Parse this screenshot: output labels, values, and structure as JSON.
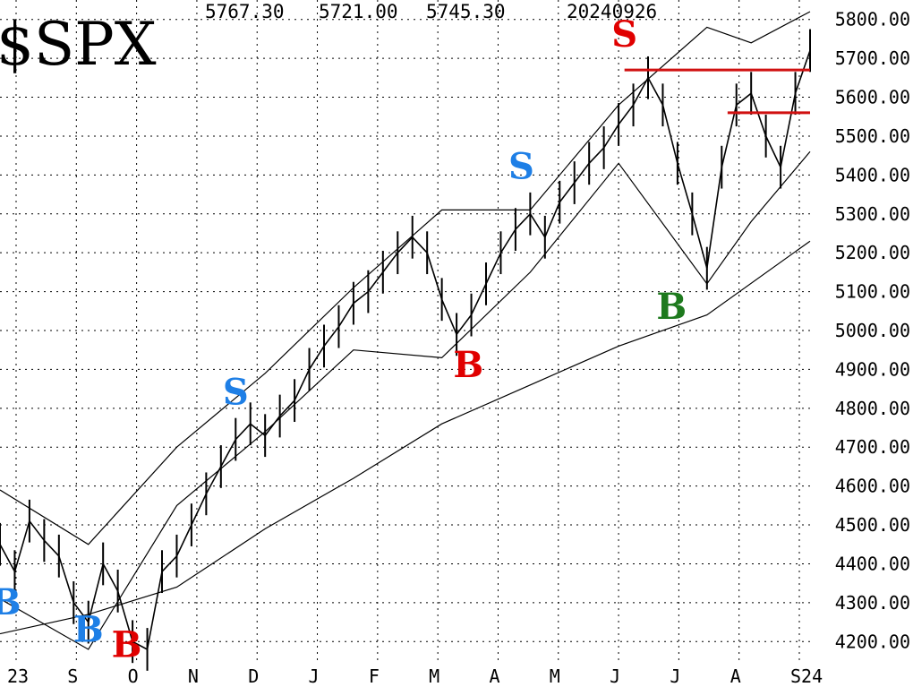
{
  "header": {
    "symbol": "$SPX",
    "high": "5767.30",
    "low": "5721.00",
    "close": "5745.30",
    "date": "20240926"
  },
  "colors": {
    "price": "#000000",
    "grid": "#000000",
    "signal_red": "#e00000",
    "signal_blue": "#1e7fe6",
    "signal_green": "#1e7a1e",
    "resistance_line": "#d01010"
  },
  "chart_data": {
    "type": "line",
    "y_axis": {
      "range": [
        4150,
        5850
      ],
      "ticks": [
        "5800.00",
        "5700.00",
        "5600.00",
        "5500.00",
        "5400.00",
        "5300.00",
        "5200.00",
        "5100.00",
        "5000.00",
        "4900.00",
        "4800.00",
        "4700.00",
        "4600.00",
        "4500.00",
        "4400.00",
        "4300.00",
        "4200.00"
      ],
      "position": "right"
    },
    "x_axis": {
      "labels": [
        "23",
        "S",
        "O",
        "N",
        "D",
        "J",
        "F",
        "M",
        "A",
        "M",
        "J",
        "J",
        "A",
        "S24"
      ]
    },
    "grid": true,
    "series": [
      {
        "style": "price-bars",
        "x": [
          0,
          5,
          10,
          15,
          20,
          25,
          30,
          35,
          40,
          45,
          50,
          55,
          60,
          65,
          70,
          75,
          80,
          85,
          90,
          95,
          100,
          105,
          110,
          115,
          120,
          125,
          130,
          135,
          140,
          145,
          150,
          155,
          160,
          165,
          170,
          175,
          180,
          185,
          190,
          195,
          200,
          205,
          210,
          215,
          220,
          225,
          230,
          235,
          240,
          245,
          250,
          255,
          260,
          265,
          270,
          275
        ],
        "values": [
          4450,
          4380,
          4510,
          4460,
          4420,
          4300,
          4250,
          4400,
          4330,
          4200,
          4180,
          4380,
          4420,
          4500,
          4580,
          4650,
          4720,
          4760,
          4730,
          4780,
          4820,
          4900,
          4960,
          5010,
          5070,
          5100,
          5150,
          5200,
          5240,
          5200,
          5080,
          4990,
          5040,
          5120,
          5200,
          5260,
          5300,
          5240,
          5330,
          5380,
          5430,
          5470,
          5530,
          5580,
          5650,
          5580,
          5430,
          5300,
          5160,
          5420,
          5580,
          5610,
          5500,
          5420,
          5610,
          5720
        ]
      },
      {
        "name": "200-day moving average",
        "style": "line",
        "x": [
          0,
          30,
          60,
          90,
          120,
          150,
          180,
          210,
          240,
          275
        ],
        "values": [
          4220,
          4270,
          4340,
          4490,
          4620,
          4760,
          4860,
          4960,
          5040,
          5230
        ]
      },
      {
        "name": "upper envelope",
        "style": "line",
        "x": [
          0,
          30,
          60,
          90,
          120,
          150,
          180,
          210,
          240,
          255,
          275
        ],
        "values": [
          4590,
          4450,
          4700,
          4890,
          5110,
          5310,
          5310,
          5580,
          5780,
          5740,
          5820
        ]
      },
      {
        "name": "lower envelope",
        "style": "line",
        "x": [
          0,
          30,
          60,
          90,
          120,
          150,
          180,
          210,
          240,
          255,
          275
        ],
        "values": [
          4310,
          4180,
          4550,
          4740,
          4950,
          4930,
          5150,
          5430,
          5120,
          5280,
          5460
        ]
      }
    ],
    "horizontal_lines": [
      {
        "value": 5670,
        "x_range": [
          212,
          275
        ]
      },
      {
        "value": 5560,
        "x_range": [
          247,
          275
        ]
      }
    ],
    "annotations": [
      {
        "text": "B",
        "color": "blue",
        "x": 2,
        "y": 4270
      },
      {
        "text": "B",
        "color": "blue",
        "x": 30,
        "y": 4200
      },
      {
        "text": "B",
        "color": "red",
        "x": 43,
        "y": 4160
      },
      {
        "text": "S",
        "color": "blue",
        "x": 80,
        "y": 4810
      },
      {
        "text": "B",
        "color": "red",
        "x": 159,
        "y": 4880
      },
      {
        "text": "S",
        "color": "blue",
        "x": 177,
        "y": 5390
      },
      {
        "text": "S",
        "color": "red",
        "x": 212,
        "y": 5730
      },
      {
        "text": "B",
        "color": "green",
        "x": 228,
        "y": 5030
      }
    ]
  }
}
